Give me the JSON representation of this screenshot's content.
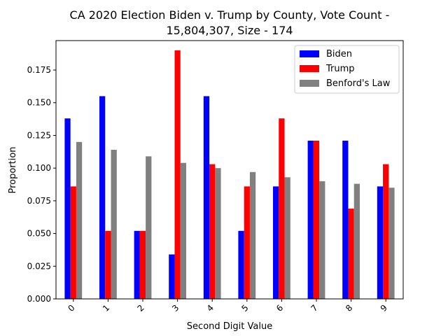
{
  "chart_data": {
    "type": "bar",
    "title_line1": "CA 2020 Election Biden v. Trump by County, Vote Count -",
    "title_line2": "15,804,307, Size - 174",
    "xlabel": "Second Digit Value",
    "ylabel": "Proportion",
    "categories": [
      "0",
      "1",
      "2",
      "3",
      "4",
      "5",
      "6",
      "7",
      "8",
      "9"
    ],
    "ylim": [
      0,
      0.1975
    ],
    "yticks": [
      "0.000",
      "0.025",
      "0.050",
      "0.075",
      "0.100",
      "0.125",
      "0.150",
      "0.175"
    ],
    "ytick_values": [
      0,
      0.025,
      0.05,
      0.075,
      0.1,
      0.125,
      0.15,
      0.175
    ],
    "legend_position": "top-right",
    "grid": false,
    "series": [
      {
        "name": "Biden",
        "color": "#0000ff",
        "values": [
          0.138,
          0.155,
          0.052,
          0.034,
          0.155,
          0.052,
          0.086,
          0.121,
          0.121,
          0.086
        ]
      },
      {
        "name": "Trump",
        "color": "#ff0000",
        "values": [
          0.086,
          0.052,
          0.052,
          0.19,
          0.103,
          0.086,
          0.138,
          0.121,
          0.069,
          0.103
        ]
      },
      {
        "name": "Benford's Law",
        "color": "#808080",
        "values": [
          0.12,
          0.114,
          0.109,
          0.104,
          0.1,
          0.097,
          0.093,
          0.09,
          0.088,
          0.085
        ]
      }
    ]
  }
}
